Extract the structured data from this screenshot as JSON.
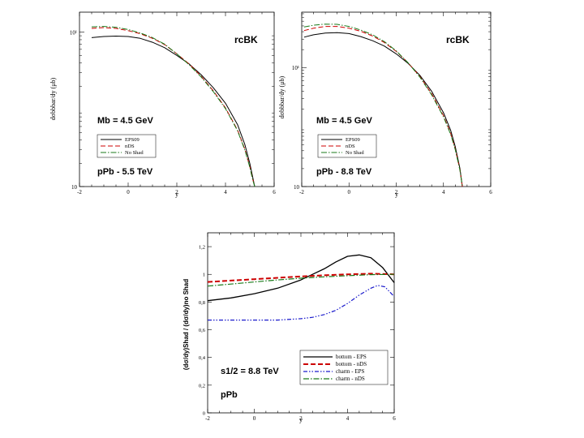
{
  "chart_data": [
    {
      "type": "line",
      "log_y": true,
      "xlabel": "y",
      "ylabel": "dσbbbar/dy (μb)",
      "xlim": [
        -2,
        6
      ],
      "x_ticks": [
        "-2",
        "0",
        "2",
        "4",
        "6"
      ],
      "y_ticks": [
        "10",
        "10¹"
      ],
      "model_label": "rcBK",
      "mass_label": "Mb = 4.5 GeV",
      "system_label": "pPb - 5.5 TeV",
      "legend_position": "bottom-left",
      "grid": false,
      "series": [
        {
          "name": "EPS09",
          "color": "#000000",
          "dash": "solid",
          "x": [
            -1.5,
            -1.0,
            -0.5,
            0.0,
            0.5,
            1.0,
            1.5,
            2.0,
            2.5,
            3.0,
            3.5,
            4.0,
            4.5,
            4.8,
            5.0,
            5.1,
            5.2
          ],
          "y": [
            0.93,
            0.945,
            0.95,
            0.945,
            0.92,
            0.87,
            0.8,
            0.7,
            0.59,
            0.45,
            0.28,
            0.08,
            -0.2,
            -0.46,
            -0.7,
            -0.85,
            -1.0
          ]
        },
        {
          "name": "nDS",
          "color": "#cc0000",
          "dash": "dashed",
          "x": [
            -1.5,
            -1.0,
            -0.5,
            0.0,
            0.5,
            1.0,
            1.5,
            2.0,
            2.5,
            3.0,
            3.5,
            4.0,
            4.5,
            4.8,
            5.0,
            5.1,
            5.2
          ],
          "y": [
            1.05,
            1.06,
            1.05,
            1.02,
            0.98,
            0.92,
            0.84,
            0.72,
            0.59,
            0.43,
            0.24,
            0.02,
            -0.27,
            -0.52,
            -0.74,
            -0.88,
            -1.0
          ]
        },
        {
          "name": "No Shad",
          "color": "#1a7a1a",
          "dash": "dashdot",
          "x": [
            -1.5,
            -1.0,
            -0.5,
            0.0,
            0.5,
            1.0,
            1.5,
            2.0,
            2.5,
            3.0,
            3.5,
            4.0,
            4.5,
            4.8,
            5.0,
            5.1,
            5.2
          ],
          "y": [
            1.07,
            1.075,
            1.065,
            1.035,
            0.99,
            0.93,
            0.845,
            0.72,
            0.58,
            0.42,
            0.23,
            0.01,
            -0.28,
            -0.53,
            -0.75,
            -0.89,
            -1.0
          ]
        }
      ]
    },
    {
      "type": "line",
      "log_y": true,
      "xlabel": "y",
      "ylabel": "dσbbbar/dy (μb)",
      "xlim": [
        -2,
        6
      ],
      "x_ticks": [
        "-2",
        "0",
        "2",
        "4",
        "6"
      ],
      "y_ticks": [
        "10",
        "10¹"
      ],
      "model_label": "rcBK",
      "mass_label": "Mb = 4.5 GeV",
      "system_label": "pPb - 8.8 TeV",
      "legend_position": "bottom-left",
      "grid": false,
      "series": [
        {
          "name": "EPS09",
          "color": "#000000",
          "dash": "solid",
          "x": [
            -1.9,
            -1.5,
            -1.0,
            -0.5,
            0.0,
            0.5,
            1.0,
            1.5,
            2.0,
            2.5,
            3.0,
            3.5,
            4.0,
            4.3,
            4.5,
            4.7,
            4.8
          ],
          "y": [
            1.51,
            1.55,
            1.58,
            1.585,
            1.57,
            1.52,
            1.45,
            1.36,
            1.23,
            1.07,
            0.87,
            0.6,
            0.24,
            -0.05,
            -0.33,
            -0.7,
            -1.0
          ]
        },
        {
          "name": "nDS",
          "color": "#cc0000",
          "dash": "dashed",
          "x": [
            -1.9,
            -1.5,
            -1.0,
            -0.5,
            0.0,
            0.5,
            1.0,
            1.5,
            2.0,
            2.5,
            3.0,
            3.5,
            4.0,
            4.3,
            4.5,
            4.7,
            4.8
          ],
          "y": [
            1.62,
            1.66,
            1.69,
            1.69,
            1.66,
            1.61,
            1.53,
            1.42,
            1.27,
            1.08,
            0.85,
            0.56,
            0.19,
            -0.1,
            -0.37,
            -0.72,
            -1.0
          ]
        },
        {
          "name": "No Shad",
          "color": "#1a7a1a",
          "dash": "dashdot",
          "x": [
            -1.9,
            -1.5,
            -1.0,
            -0.5,
            0.0,
            0.5,
            1.0,
            1.5,
            2.0,
            2.5,
            3.0,
            3.5,
            4.0,
            4.3,
            4.5,
            4.7,
            4.8
          ],
          "y": [
            1.68,
            1.71,
            1.73,
            1.725,
            1.69,
            1.63,
            1.55,
            1.435,
            1.28,
            1.08,
            0.84,
            0.54,
            0.17,
            -0.12,
            -0.38,
            -0.73,
            -1.0
          ]
        }
      ]
    },
    {
      "type": "line",
      "xlabel": "y",
      "ylabel": "(dσ/dy)Shad / (dσ/dy)no Shad",
      "xlim": [
        -2,
        6
      ],
      "ylim": [
        0,
        1.3
      ],
      "x_ticks": [
        "-2",
        "0",
        "2",
        "4",
        "6"
      ],
      "y_ticks": [
        "0",
        "0,2",
        "0,4",
        "0,6",
        "0,8",
        "1",
        "1,2"
      ],
      "energy_label": "s1/2 = 8.8 TeV",
      "system_label": "pPb",
      "legend_position": "bottom-right",
      "grid": false,
      "series": [
        {
          "name": "bottom - EPS",
          "color": "#000000",
          "dash": "solid",
          "width": 1.3,
          "x": [
            -2,
            -1,
            0,
            1,
            2,
            2.5,
            3,
            3.5,
            4,
            4.5,
            5,
            5.5,
            6
          ],
          "y": [
            0.81,
            0.83,
            0.86,
            0.9,
            0.96,
            1.0,
            1.04,
            1.09,
            1.13,
            1.14,
            1.12,
            1.05,
            0.94
          ]
        },
        {
          "name": "bottom - nDS",
          "color": "#cc0000",
          "dash": "dashed",
          "width": 2,
          "x": [
            -2,
            -1,
            0,
            1,
            2,
            3,
            4,
            5,
            6
          ],
          "y": [
            0.945,
            0.955,
            0.965,
            0.975,
            0.985,
            0.993,
            1.0,
            1.005,
            1.0
          ]
        },
        {
          "name": "charm - EPS",
          "color": "#1a1acc",
          "dash": "dashdotdot",
          "width": 1.2,
          "x": [
            -2,
            -1,
            0,
            1,
            2,
            2.5,
            3,
            3.5,
            4,
            4.5,
            5,
            5.3,
            5.6,
            6
          ],
          "y": [
            0.67,
            0.67,
            0.67,
            0.67,
            0.68,
            0.69,
            0.71,
            0.74,
            0.79,
            0.85,
            0.9,
            0.92,
            0.91,
            0.84
          ]
        },
        {
          "name": "charm - nDS",
          "color": "#1a7a1a",
          "dash": "dashdot",
          "width": 1.2,
          "x": [
            -2,
            -1,
            0,
            1,
            2,
            3,
            4,
            5,
            6
          ],
          "y": [
            0.915,
            0.93,
            0.945,
            0.96,
            0.972,
            0.982,
            0.99,
            0.998,
            1.0
          ]
        }
      ]
    }
  ]
}
